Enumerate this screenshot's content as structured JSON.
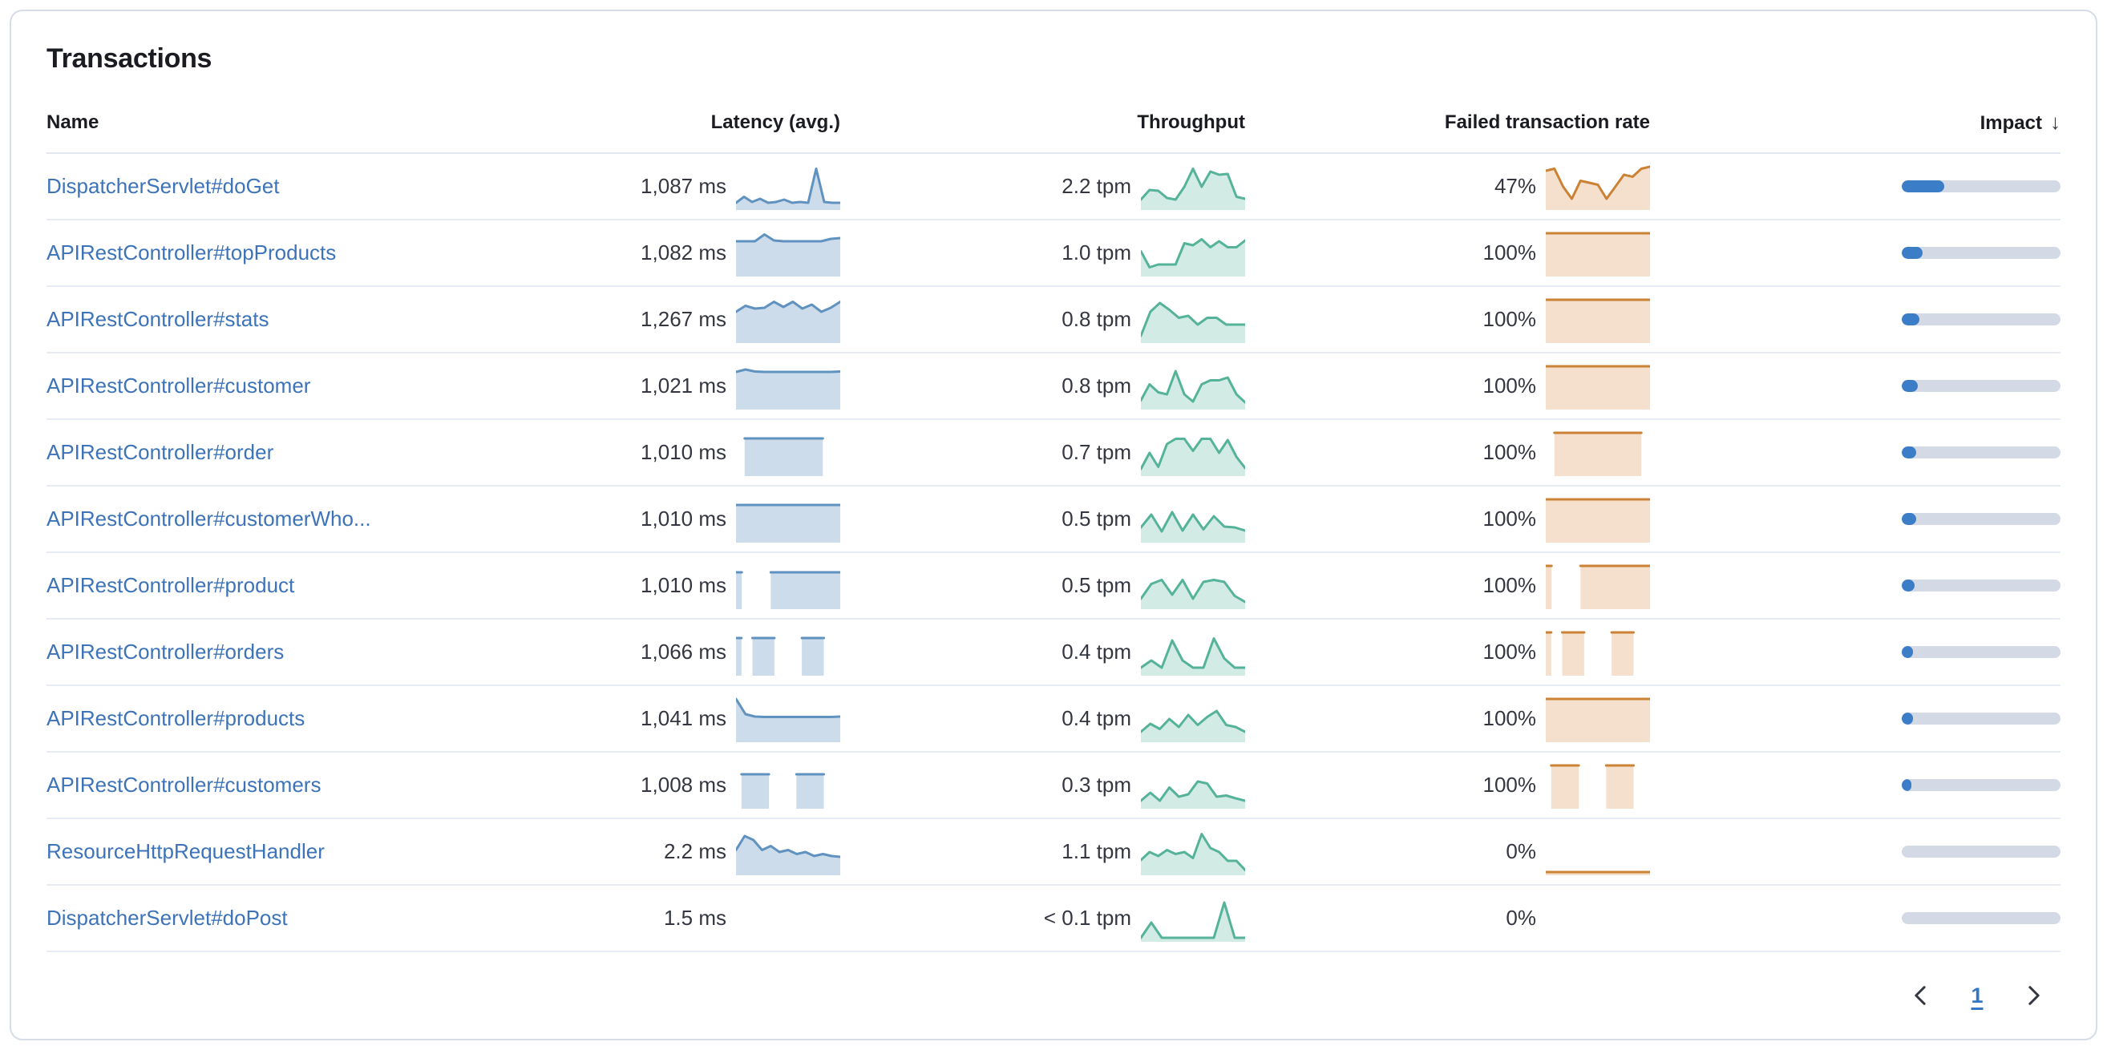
{
  "panel": {
    "title": "Transactions"
  },
  "colors": {
    "link_blue": "#3d73b8",
    "latency_line": "#6092c0",
    "latency_fill": "rgba(96,146,192,0.32)",
    "throughput_line": "#54b399",
    "throughput_fill": "rgba(84,179,153,0.26)",
    "failed_line": "#cc8234",
    "failed_fill": "rgba(214,134,59,0.26)",
    "impact_fill": "#3c7dc8",
    "impact_track": "#d3d9e5"
  },
  "table": {
    "columns": [
      "Name",
      "Latency (avg.)",
      "Throughput",
      "Failed transaction rate",
      "Impact"
    ],
    "sorted_column": "Impact",
    "sort_direction": "descending",
    "icons": {
      "sort": "arrow-down",
      "prev": "chevron-left",
      "next": "chevron-right"
    },
    "rows": [
      {
        "name": "DispatcherServlet#doGet",
        "latency": "1,087 ms",
        "throughput": "2.2 tpm",
        "failed_rate": "47%",
        "impact_pct": 27,
        "latency_spark": [
          0.1,
          0.25,
          0.12,
          0.2,
          0.1,
          0.12,
          0.18,
          0.1,
          0.12,
          0.1,
          0.95,
          0.12,
          0.1,
          0.1
        ],
        "throughput_spark": [
          0.18,
          0.42,
          0.4,
          0.22,
          0.18,
          0.5,
          0.95,
          0.5,
          0.88,
          0.8,
          0.82,
          0.25,
          0.2
        ],
        "failed_spark": [
          0.9,
          0.95,
          0.5,
          0.2,
          0.65,
          0.6,
          0.55,
          0.2,
          0.5,
          0.8,
          0.75,
          0.95,
          1.0
        ]
      },
      {
        "name": "APIRestController#topProducts",
        "latency": "1,082 ms",
        "throughput": "1.0 tpm",
        "failed_rate": "100%",
        "impact_pct": 13,
        "latency_spark": [
          0.8,
          0.8,
          0.8,
          0.97,
          0.82,
          0.8,
          0.8,
          0.8,
          0.8,
          0.8,
          0.86,
          0.88
        ],
        "throughput_spark": [
          0.55,
          0.15,
          0.22,
          0.22,
          0.22,
          0.75,
          0.7,
          0.85,
          0.65,
          0.8,
          0.65,
          0.65,
          0.82
        ],
        "failed_spark": [
          1,
          1,
          1,
          1,
          1,
          1,
          1,
          1,
          1,
          1,
          1,
          1
        ]
      },
      {
        "name": "APIRestController#stats",
        "latency": "1,267 ms",
        "throughput": "0.8 tpm",
        "failed_rate": "100%",
        "impact_pct": 11,
        "latency_spark": [
          0.7,
          0.85,
          0.78,
          0.8,
          0.95,
          0.82,
          0.95,
          0.78,
          0.88,
          0.7,
          0.8,
          0.95
        ],
        "throughput_spark": [
          0.1,
          0.7,
          0.92,
          0.75,
          0.55,
          0.6,
          0.38,
          0.55,
          0.55,
          0.38,
          0.38,
          0.38
        ],
        "failed_spark": [
          1,
          1,
          1,
          1,
          1,
          1,
          1,
          1,
          1,
          1,
          1,
          1
        ]
      },
      {
        "name": "APIRestController#customer",
        "latency": "1,021 ms",
        "throughput": "0.8 tpm",
        "failed_rate": "100%",
        "impact_pct": 10,
        "latency_spark": [
          0.86,
          0.92,
          0.87,
          0.86,
          0.86,
          0.86,
          0.86,
          0.86,
          0.86,
          0.86,
          0.86,
          0.87
        ],
        "throughput_spark": [
          0.15,
          0.55,
          0.35,
          0.3,
          0.88,
          0.3,
          0.12,
          0.55,
          0.65,
          0.65,
          0.72,
          0.3,
          0.1
        ],
        "failed_spark": [
          1,
          1,
          1,
          1,
          1,
          1,
          1,
          1,
          1,
          1,
          1,
          1
        ]
      },
      {
        "name": "APIRestController#order",
        "latency": "1,010 ms",
        "throughput": "0.7 tpm",
        "failed_rate": "100%",
        "impact_pct": 9,
        "latency_spark": [
          null,
          0.86,
          0.86,
          0.86,
          0.86,
          0.86,
          0.86,
          0.86,
          0.86,
          0.86,
          0.86,
          null,
          null
        ],
        "throughput_spark": [
          0.1,
          0.5,
          0.15,
          0.72,
          0.85,
          0.85,
          0.55,
          0.85,
          0.85,
          0.5,
          0.82,
          0.4,
          0.12
        ],
        "failed_spark": [
          null,
          1,
          1,
          1,
          1,
          1,
          1,
          1,
          1,
          1,
          1,
          1,
          null
        ]
      },
      {
        "name": "APIRestController#customerWho...",
        "latency": "1,010 ms",
        "throughput": "0.5 tpm",
        "failed_rate": "100%",
        "impact_pct": 9,
        "latency_spark": [
          0.86,
          0.86,
          0.86,
          0.86,
          0.86,
          0.86,
          0.86,
          0.86,
          0.86,
          0.86,
          0.86,
          0.86
        ],
        "throughput_spark": [
          0.3,
          0.62,
          0.2,
          0.68,
          0.22,
          0.62,
          0.25,
          0.58,
          0.32,
          0.3,
          0.22
        ],
        "failed_spark": [
          1,
          1,
          1,
          1,
          1,
          1,
          1,
          1,
          1,
          1,
          1,
          1
        ]
      },
      {
        "name": "APIRestController#product",
        "latency": "1,010 ms",
        "throughput": "0.5 tpm",
        "failed_rate": "100%",
        "impact_pct": 8,
        "latency_spark": [
          0.84,
          0.84,
          null,
          null,
          null,
          null,
          0.84,
          0.84,
          0.84,
          0.84,
          0.84,
          0.84,
          0.84,
          0.84,
          0.84,
          0.84,
          0.84,
          0.84,
          0.84
        ],
        "throughput_spark": [
          0.18,
          0.55,
          0.65,
          0.28,
          0.65,
          0.18,
          0.6,
          0.65,
          0.6,
          0.25,
          0.1
        ],
        "failed_spark": [
          1,
          1,
          null,
          null,
          null,
          null,
          1,
          1,
          1,
          1,
          1,
          1,
          1,
          1,
          1,
          1,
          1,
          1,
          1
        ]
      },
      {
        "name": "APIRestController#orders",
        "latency": "1,066 ms",
        "throughput": "0.4 tpm",
        "failed_rate": "100%",
        "impact_pct": 7,
        "latency_spark": [
          0.86,
          0.86,
          null,
          0.86,
          0.86,
          0.86,
          0.86,
          0.86,
          null,
          null,
          null,
          null,
          0.86,
          0.86,
          0.86,
          0.86,
          0.86,
          null,
          null,
          null
        ],
        "throughput_spark": [
          0.12,
          0.3,
          0.12,
          0.8,
          0.3,
          0.12,
          0.12,
          0.85,
          0.35,
          0.12,
          0.12
        ],
        "failed_spark": [
          1,
          1,
          null,
          1,
          1,
          1,
          1,
          1,
          null,
          null,
          null,
          null,
          1,
          1,
          1,
          1,
          1,
          null,
          null,
          null
        ]
      },
      {
        "name": "APIRestController#products",
        "latency": "1,041 ms",
        "throughput": "0.4 tpm",
        "failed_rate": "100%",
        "impact_pct": 7,
        "latency_spark": [
          1.0,
          0.62,
          0.56,
          0.55,
          0.55,
          0.55,
          0.55,
          0.55,
          0.55,
          0.55,
          0.55,
          0.56
        ],
        "throughput_spark": [
          0.18,
          0.38,
          0.25,
          0.5,
          0.3,
          0.6,
          0.35,
          0.55,
          0.7,
          0.35,
          0.3,
          0.18
        ],
        "failed_spark": [
          1,
          1,
          1,
          1,
          1,
          1,
          1,
          1,
          1,
          1,
          1,
          1
        ]
      },
      {
        "name": "APIRestController#customers",
        "latency": "1,008 ms",
        "throughput": "0.3 tpm",
        "failed_rate": "100%",
        "impact_pct": 6,
        "latency_spark": [
          null,
          0.78,
          0.78,
          0.78,
          0.78,
          0.78,
          0.78,
          null,
          null,
          null,
          null,
          0.78,
          0.78,
          0.78,
          0.78,
          0.78,
          0.78,
          null,
          null,
          null
        ],
        "throughput_spark": [
          0.12,
          0.32,
          0.12,
          0.45,
          0.22,
          0.28,
          0.6,
          0.55,
          0.22,
          0.25,
          0.18,
          0.12
        ],
        "failed_spark": [
          null,
          1,
          1,
          1,
          1,
          1,
          1,
          null,
          null,
          null,
          null,
          1,
          1,
          1,
          1,
          1,
          1,
          null,
          null,
          null
        ]
      },
      {
        "name": "ResourceHttpRequestHandler",
        "latency": "2.2 ms",
        "throughput": "1.1 tpm",
        "failed_rate": "0%",
        "impact_pct": 0,
        "latency_spark": [
          0.55,
          0.9,
          0.8,
          0.55,
          0.65,
          0.5,
          0.55,
          0.45,
          0.5,
          0.4,
          0.45,
          0.4,
          0.38
        ],
        "throughput_spark": [
          0.3,
          0.5,
          0.4,
          0.55,
          0.45,
          0.5,
          0.35,
          0.95,
          0.6,
          0.5,
          0.28,
          0.28,
          0.05
        ],
        "failed_spark": [
          0,
          0,
          0,
          0,
          0,
          0,
          0,
          0,
          0,
          0,
          0,
          0
        ]
      },
      {
        "name": "DispatcherServlet#doPost",
        "latency": "1.5 ms",
        "throughput": "< 0.1 tpm",
        "failed_rate": "0%",
        "impact_pct": 0,
        "latency_spark": null,
        "throughput_spark": [
          0.02,
          0.4,
          0.02,
          0.02,
          0.02,
          0.02,
          0.02,
          0.02,
          0.9,
          0.02,
          0.02
        ],
        "failed_spark": null
      }
    ]
  },
  "pagination": {
    "page": "1"
  }
}
